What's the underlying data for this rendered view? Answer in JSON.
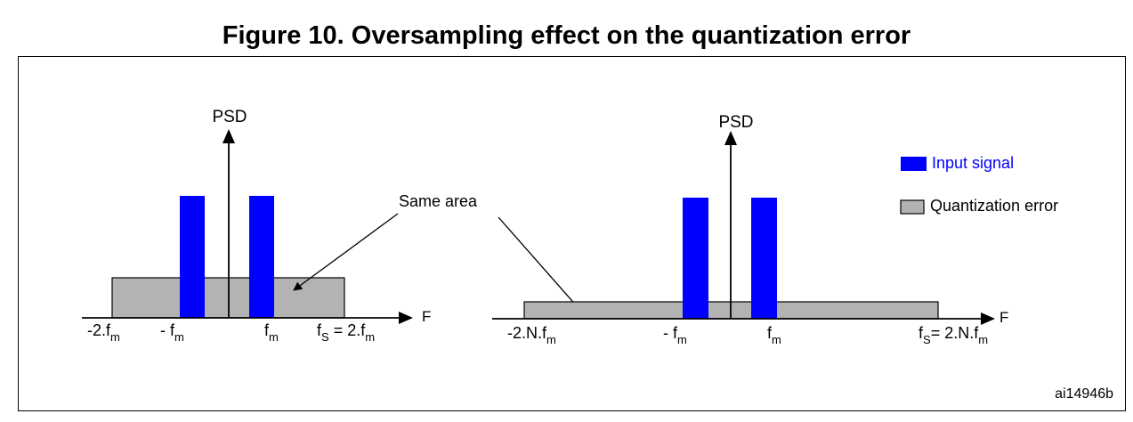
{
  "figure": {
    "title": "Figure 10. Oversampling effect on the quantization error",
    "id_label": "ai14946b",
    "annotation": "Same area"
  },
  "colors": {
    "input_signal": "#0000ff",
    "quantization_error": "#b3b3b3",
    "outline": "#000000"
  },
  "left_panel": {
    "axis_y_label": "PSD",
    "axis_x_label": "F",
    "ticks": {
      "neg_fs": {
        "base": "-2.f",
        "sub": "m"
      },
      "neg_fm": {
        "base": "- f",
        "sub": "m"
      },
      "pos_fm": {
        "base": "f",
        "sub": "m"
      },
      "fs": {
        "base": "f",
        "sub": "S",
        "rest": " = 2.f",
        "sub2": "m"
      }
    }
  },
  "right_panel": {
    "axis_y_label": "PSD",
    "axis_x_label": "F",
    "ticks": {
      "neg_fs": {
        "base": "-2.N.f",
        "sub": "m"
      },
      "neg_fm": {
        "base": "- f",
        "sub": "m"
      },
      "pos_fm": {
        "base": "f",
        "sub": "m"
      },
      "fs": {
        "base": "f",
        "sub": "S",
        "rest": "= 2.N.f",
        "sub2": "m"
      }
    }
  },
  "legend": {
    "input_signal": "Input signal",
    "quantization_error": "Quantization error",
    "icons": [
      "blue-filled-rect-icon",
      "gray-outlined-rect-icon"
    ]
  }
}
